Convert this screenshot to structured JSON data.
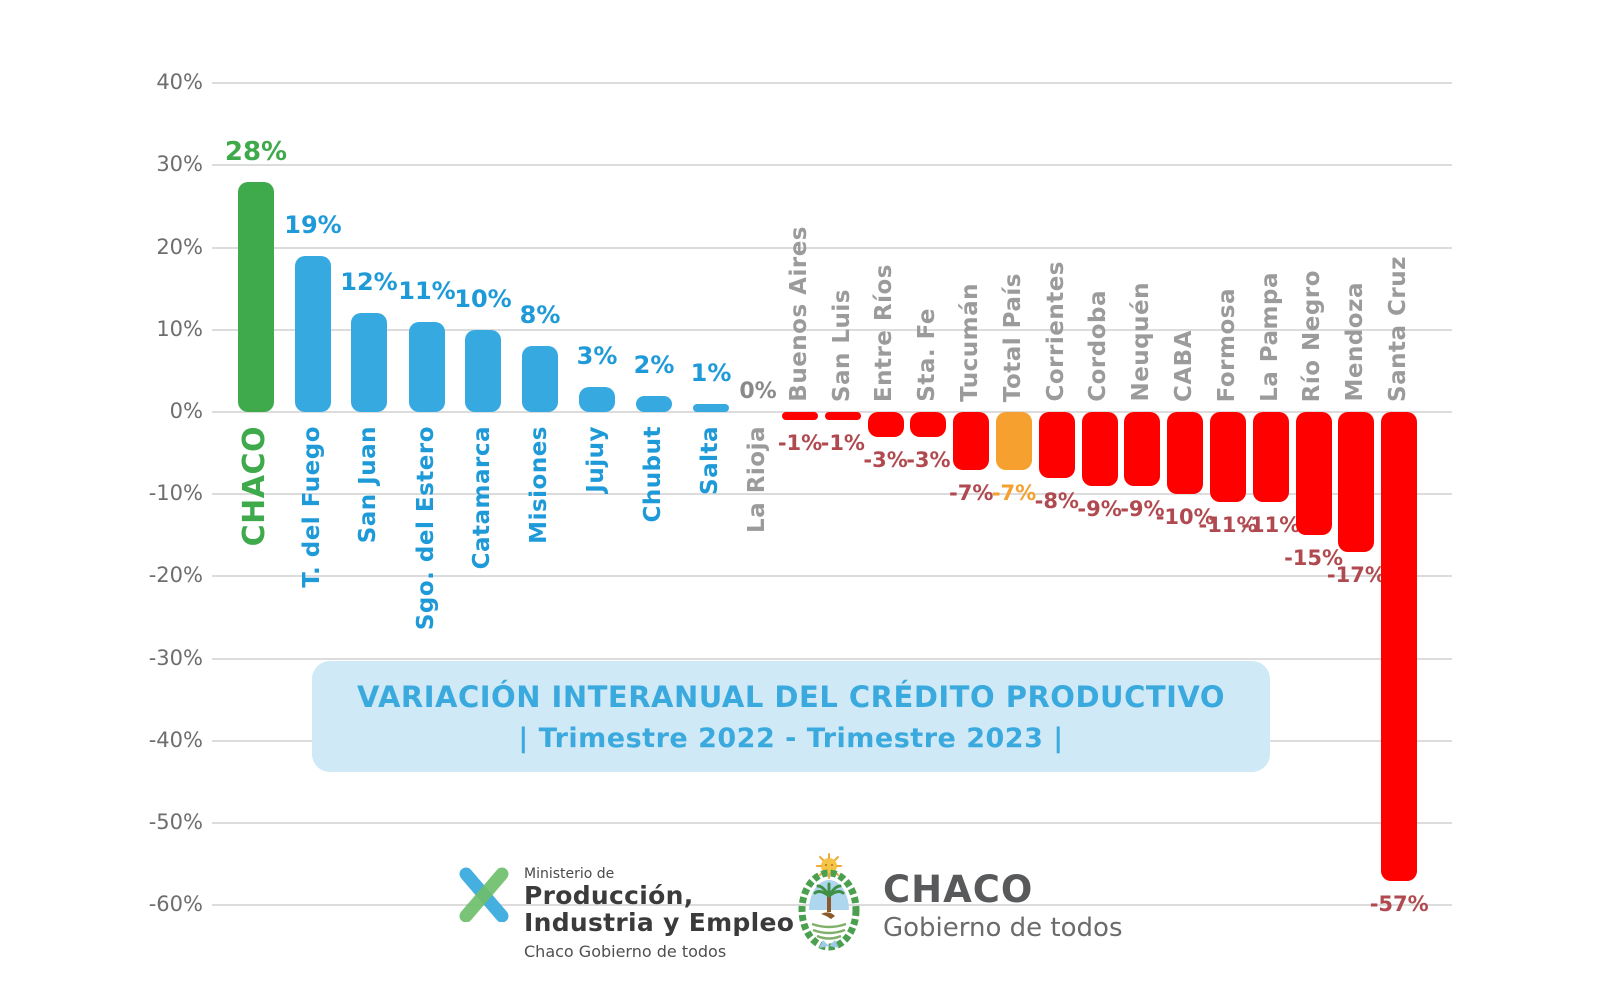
{
  "title": {
    "line1": "VARIACIÓN INTERANUAL DEL CRÉDITO PRODUCTIVO",
    "line2": "| Trimestre 2022 - Trimestre 2023 |"
  },
  "colors": {
    "green": "#3faa4b",
    "blue_bar": "#36a9e1",
    "blue_text": "#1e9ad8",
    "red": "#fe0000",
    "orange": "#f5a02f",
    "neg_value_text": "#b04a50",
    "gray_category_text": "#9b9b9b",
    "zero_value_text": "#8a8a8a",
    "axis_text": "#6e6e6e",
    "gridline": "#dcdcdc",
    "title_bg": "#cfe9f6",
    "title_text": "#3aa9de"
  },
  "chart_data": {
    "type": "bar",
    "title": "VARIACIÓN INTERANUAL DEL CRÉDITO PRODUCTIVO | Trimestre 2022 - Trimestre 2023 |",
    "xlabel": "",
    "ylabel": "",
    "ylim": [
      -60,
      40
    ],
    "grid": true,
    "legend": false,
    "y_tick_labels": [
      "40%",
      "30%",
      "20%",
      "10%",
      "0%",
      "-10%",
      "-20%",
      "-30%",
      "-40%",
      "-50%",
      "-60%"
    ],
    "y_tick_values": [
      40,
      30,
      20,
      10,
      0,
      -10,
      -20,
      -30,
      -40,
      -50,
      -60
    ],
    "categories": [
      "CHACO",
      "T. del Fuego",
      "San Juan",
      "Sgo. del Estero",
      "Catamarca",
      "Misiones",
      "Jujuy",
      "Chubut",
      "Salta",
      "La Rioja",
      "Buenos Aires",
      "San Luis",
      "Entre Ríos",
      "Sta. Fe",
      "Tucumán",
      "Total País",
      "Corrientes",
      "Cordoba",
      "Neuquén",
      "CABA",
      "Formosa",
      "La Pampa",
      "Río Negro",
      "Mendoza",
      "Santa Cruz"
    ],
    "values": [
      28,
      19,
      12,
      11,
      10,
      8,
      3,
      2,
      1,
      0,
      -1,
      -1,
      -3,
      -3,
      -7,
      -7,
      -8,
      -9,
      -9,
      -10,
      -11,
      -11,
      -15,
      -17,
      -57
    ],
    "value_labels": [
      "28%",
      "19%",
      "12%",
      "11%",
      "10%",
      "8%",
      "3%",
      "2%",
      "1%",
      "0%",
      "-1%",
      "-1%",
      "-3%",
      "-3%",
      "-7%",
      "-7%",
      "-8%",
      "-9%",
      "-9%",
      "-10%",
      "-11%",
      "-11%",
      "-15%",
      "-17%",
      "-57%"
    ],
    "bar_roles": [
      "highlight",
      "positive",
      "positive",
      "positive",
      "positive",
      "positive",
      "positive",
      "positive",
      "positive",
      "zero",
      "negative",
      "negative",
      "negative",
      "negative",
      "negative",
      "total",
      "negative",
      "negative",
      "negative",
      "negative",
      "negative",
      "negative",
      "negative",
      "negative",
      "negative"
    ]
  },
  "footer": {
    "ministry": {
      "pre": "Ministerio de",
      "line1": "Producción,",
      "line2": "Industria y Empleo",
      "sub": "Chaco Gobierno de todos"
    },
    "government": {
      "name": "CHACO",
      "sub": "Gobierno de todos"
    }
  }
}
